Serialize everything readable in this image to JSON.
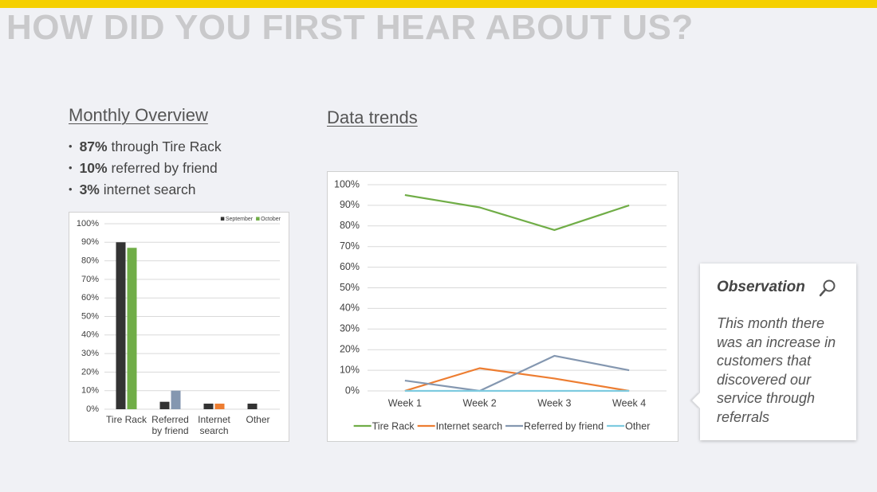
{
  "title": "HOW DID YOU FIRST HEAR ABOUT US?",
  "overview": {
    "heading": "Monthly Overview",
    "bullets": [
      {
        "bold": "87%",
        "text": "through Tire Rack"
      },
      {
        "bold": "10%",
        "text": "referred by friend"
      },
      {
        "bold": "3%",
        "text": "internet search"
      }
    ]
  },
  "trends_heading": "Data trends",
  "observation": {
    "heading": "Observation",
    "text": "This month there was an increase in customers that discovered our service through referrals"
  },
  "chart_data": [
    {
      "type": "bar",
      "categories": [
        "Tire Rack",
        "Referred by friend",
        "Internet search",
        "Other"
      ],
      "series": [
        {
          "name": "September",
          "color": "#333333",
          "values": [
            90,
            4,
            3,
            3
          ]
        },
        {
          "name": "October",
          "color": "#70ad47",
          "colors": [
            "#70ad47",
            "#8497b0",
            "#ed7d31",
            "#70ad47"
          ],
          "values": [
            87,
            10,
            3,
            0
          ]
        }
      ],
      "ylim": [
        0,
        100
      ],
      "yticks": [
        {
          "value": 0,
          "label": "0%"
        },
        {
          "value": 10,
          "label": "10%"
        },
        {
          "value": 20,
          "label": "20%"
        },
        {
          "value": 30,
          "label": "30%"
        },
        {
          "value": 40,
          "label": "40%"
        },
        {
          "value": 50,
          "label": "50%"
        },
        {
          "value": 60,
          "label": "60%"
        },
        {
          "value": 70,
          "label": "70%"
        },
        {
          "value": 80,
          "label": "80%"
        },
        {
          "value": 90,
          "label": "90%"
        },
        {
          "value": 100,
          "label": "100%"
        }
      ],
      "grid": true,
      "legend": "top-right"
    },
    {
      "type": "line",
      "categories": [
        "Week 1",
        "Week 2",
        "Week 3",
        "Week 4"
      ],
      "series": [
        {
          "name": "Tire Rack",
          "color": "#70ad47",
          "values": [
            95,
            89,
            78,
            90
          ]
        },
        {
          "name": "Internet search",
          "color": "#ed7d31",
          "values": [
            0,
            11,
            6,
            0
          ]
        },
        {
          "name": "Referred by friend",
          "color": "#8497b0",
          "values": [
            5,
            0,
            17,
            10
          ]
        },
        {
          "name": "Other",
          "color": "#7ecbe0",
          "values": [
            0,
            0,
            0,
            0
          ]
        }
      ],
      "ylim": [
        0,
        100
      ],
      "yticks": [
        {
          "value": 0,
          "label": "0%"
        },
        {
          "value": 10,
          "label": "10%"
        },
        {
          "value": 20,
          "label": "20%"
        },
        {
          "value": 30,
          "label": "30%"
        },
        {
          "value": 40,
          "label": "40%"
        },
        {
          "value": 50,
          "label": "50%"
        },
        {
          "value": 60,
          "label": "60%"
        },
        {
          "value": 70,
          "label": "70%"
        },
        {
          "value": 80,
          "label": "80%"
        },
        {
          "value": 90,
          "label": "90%"
        },
        {
          "value": 100,
          "label": "100%"
        }
      ],
      "grid": true,
      "legend": "bottom"
    }
  ]
}
